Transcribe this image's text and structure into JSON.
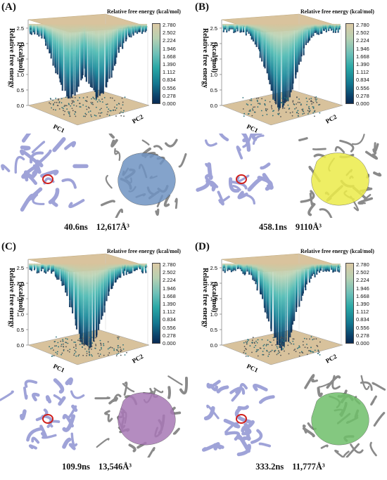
{
  "colorbar": {
    "title": "Relative free energy  (kcal/mol)",
    "ticks": [
      "2.780",
      "2.502",
      "2.224",
      "1.946",
      "1.668",
      "1.390",
      "1.112",
      "0.834",
      "0.556",
      "0.278",
      "0.000"
    ]
  },
  "yaxis": {
    "label_line1": "Relative free energy",
    "label_line2": "(kcal/mol)",
    "ticks": [
      "0.0",
      "0.5",
      "1.0",
      "1.5",
      "2.0",
      "2.5"
    ]
  },
  "axes": {
    "pc1": "PC1",
    "pc2": "PC2"
  },
  "panels": [
    {
      "label": "(A)",
      "time": "40.6ns",
      "volume": "12,617Å³",
      "pocket_color": "#6f93c2"
    },
    {
      "label": "(B)",
      "time": "458.1ns",
      "volume": "9110Å³",
      "pocket_color": "#ecec4a"
    },
    {
      "label": "(C)",
      "time": "109.9ns",
      "volume": "13,546Å³",
      "pocket_color": "#a878b6"
    },
    {
      "label": "(D)",
      "time": "333.2ns",
      "volume": "11,777Å³",
      "pocket_color": "#6fbf6a"
    }
  ]
}
